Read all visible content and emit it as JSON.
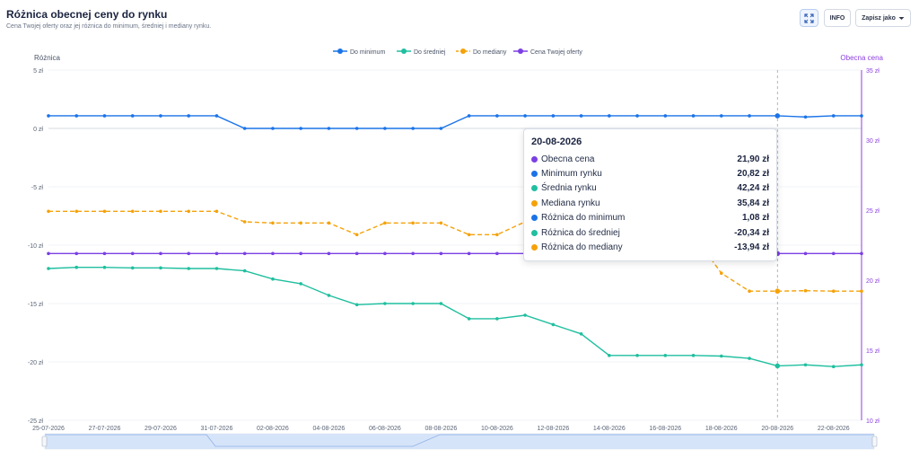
{
  "header": {
    "title": "Różnica obecnej ceny do rynku",
    "subtitle": "Cena Twojej oferty oraz jej różnica do minimum, średniej i mediany rynku.",
    "expand_icon": "expand-icon",
    "info_label": "INFO",
    "save_label": "Zapisz jako",
    "save_icon": "caret-down-icon"
  },
  "tooltip": {
    "date": "20-08-2026",
    "rows": [
      {
        "label": "Obecna cena",
        "value": "21,90 zł",
        "color": "#7b3fe4"
      },
      {
        "label": "Minimum rynku",
        "value": "20,82 zł",
        "color": "#1a73e8"
      },
      {
        "label": "Średnia rynku",
        "value": "42,24 zł",
        "color": "#1fbf9f"
      },
      {
        "label": "Mediana rynku",
        "value": "35,84 zł",
        "color": "#f5a20a"
      },
      {
        "label": "Różnica do minimum",
        "value": "1,08 zł",
        "color": "#1a73e8"
      },
      {
        "label": "Różnica do średniej",
        "value": "-20,34 zł",
        "color": "#1fbf9f"
      },
      {
        "label": "Różnica do mediany",
        "value": "-13,94 zł",
        "color": "#f5a20a"
      }
    ]
  },
  "chart_data": {
    "type": "line",
    "ylabel": "Różnica",
    "y2label": "Obecna cena",
    "ylim": [
      -25,
      5
    ],
    "y2lim": [
      10,
      35
    ],
    "yticks": [
      "5 zł",
      "0 zł",
      "-5 zł",
      "-10 zł",
      "-15 zł",
      "-20 zł",
      "-25 zł"
    ],
    "y2ticks": [
      "35 zł",
      "30 zł",
      "25 zł",
      "20 zł",
      "15 zł",
      "10 zł"
    ],
    "xticks": [
      "25-07-2026",
      "27-07-2026",
      "29-07-2026",
      "31-07-2026",
      "02-08-2026",
      "04-08-2026",
      "06-08-2026",
      "08-08-2026",
      "10-08-2026",
      "12-08-2026",
      "14-08-2026",
      "16-08-2026",
      "18-08-2026",
      "20-08-2026",
      "22-08-2026"
    ],
    "x": [
      "25-07-2026",
      "26-07-2026",
      "27-07-2026",
      "28-07-2026",
      "29-07-2026",
      "30-07-2026",
      "31-07-2026",
      "01-08-2026",
      "02-08-2026",
      "03-08-2026",
      "04-08-2026",
      "05-08-2026",
      "06-08-2026",
      "07-08-2026",
      "08-08-2026",
      "09-08-2026",
      "10-08-2026",
      "11-08-2026",
      "12-08-2026",
      "13-08-2026",
      "14-08-2026",
      "15-08-2026",
      "16-08-2026",
      "17-08-2026",
      "18-08-2026",
      "19-08-2026",
      "20-08-2026",
      "21-08-2026",
      "22-08-2026",
      "23-08-2026"
    ],
    "highlight_x": "20-08-2026",
    "legend_position": "top",
    "series": [
      {
        "name": "Do minimum",
        "color": "#1a73e8",
        "dashed": false,
        "axis": "left",
        "values": [
          1.08,
          1.08,
          1.08,
          1.08,
          1.08,
          1.08,
          1.08,
          0,
          0,
          0,
          0,
          0,
          0,
          0,
          0,
          1.08,
          1.08,
          1.08,
          1.08,
          1.08,
          1.08,
          1.08,
          1.08,
          1.08,
          1.08,
          1.08,
          1.08,
          0.98,
          1.08,
          1.08
        ]
      },
      {
        "name": "Do średniej",
        "color": "#1fbf9f",
        "dashed": false,
        "axis": "left",
        "values": [
          -12,
          -11.9,
          -11.9,
          -11.95,
          -11.95,
          -12,
          -12,
          -12.2,
          -12.9,
          -13.3,
          -14.3,
          -15.1,
          -15,
          -15,
          -15,
          -16.3,
          -16.3,
          -16,
          -16.8,
          -17.6,
          -19.45,
          -19.45,
          -19.45,
          -19.45,
          -19.5,
          -19.7,
          -20.34,
          -20.25,
          -20.4,
          -20.25
        ]
      },
      {
        "name": "Do mediany",
        "color": "#f5a20a",
        "dashed": true,
        "axis": "left",
        "values": [
          -7.1,
          -7.1,
          -7.1,
          -7.1,
          -7.1,
          -7.1,
          -7.1,
          -8,
          -8.1,
          -8.1,
          -8.1,
          -9.1,
          -8.1,
          -8.1,
          -8.1,
          -9.1,
          -9.1,
          -8,
          -8,
          -8,
          -8,
          -8,
          -8,
          -9.1,
          -12.4,
          -13.94,
          -13.94,
          -13.9,
          -13.94,
          -13.94
        ]
      },
      {
        "name": "Cena Twojej oferty",
        "color": "#7b3fe4",
        "dashed": false,
        "axis": "right",
        "values": [
          21.9,
          21.9,
          21.9,
          21.9,
          21.9,
          21.9,
          21.9,
          21.9,
          21.9,
          21.9,
          21.9,
          21.9,
          21.9,
          21.9,
          21.9,
          21.9,
          21.9,
          21.9,
          21.9,
          21.9,
          21.9,
          21.9,
          21.9,
          21.9,
          21.9,
          21.9,
          21.9,
          21.9,
          21.9,
          21.9
        ]
      }
    ]
  }
}
